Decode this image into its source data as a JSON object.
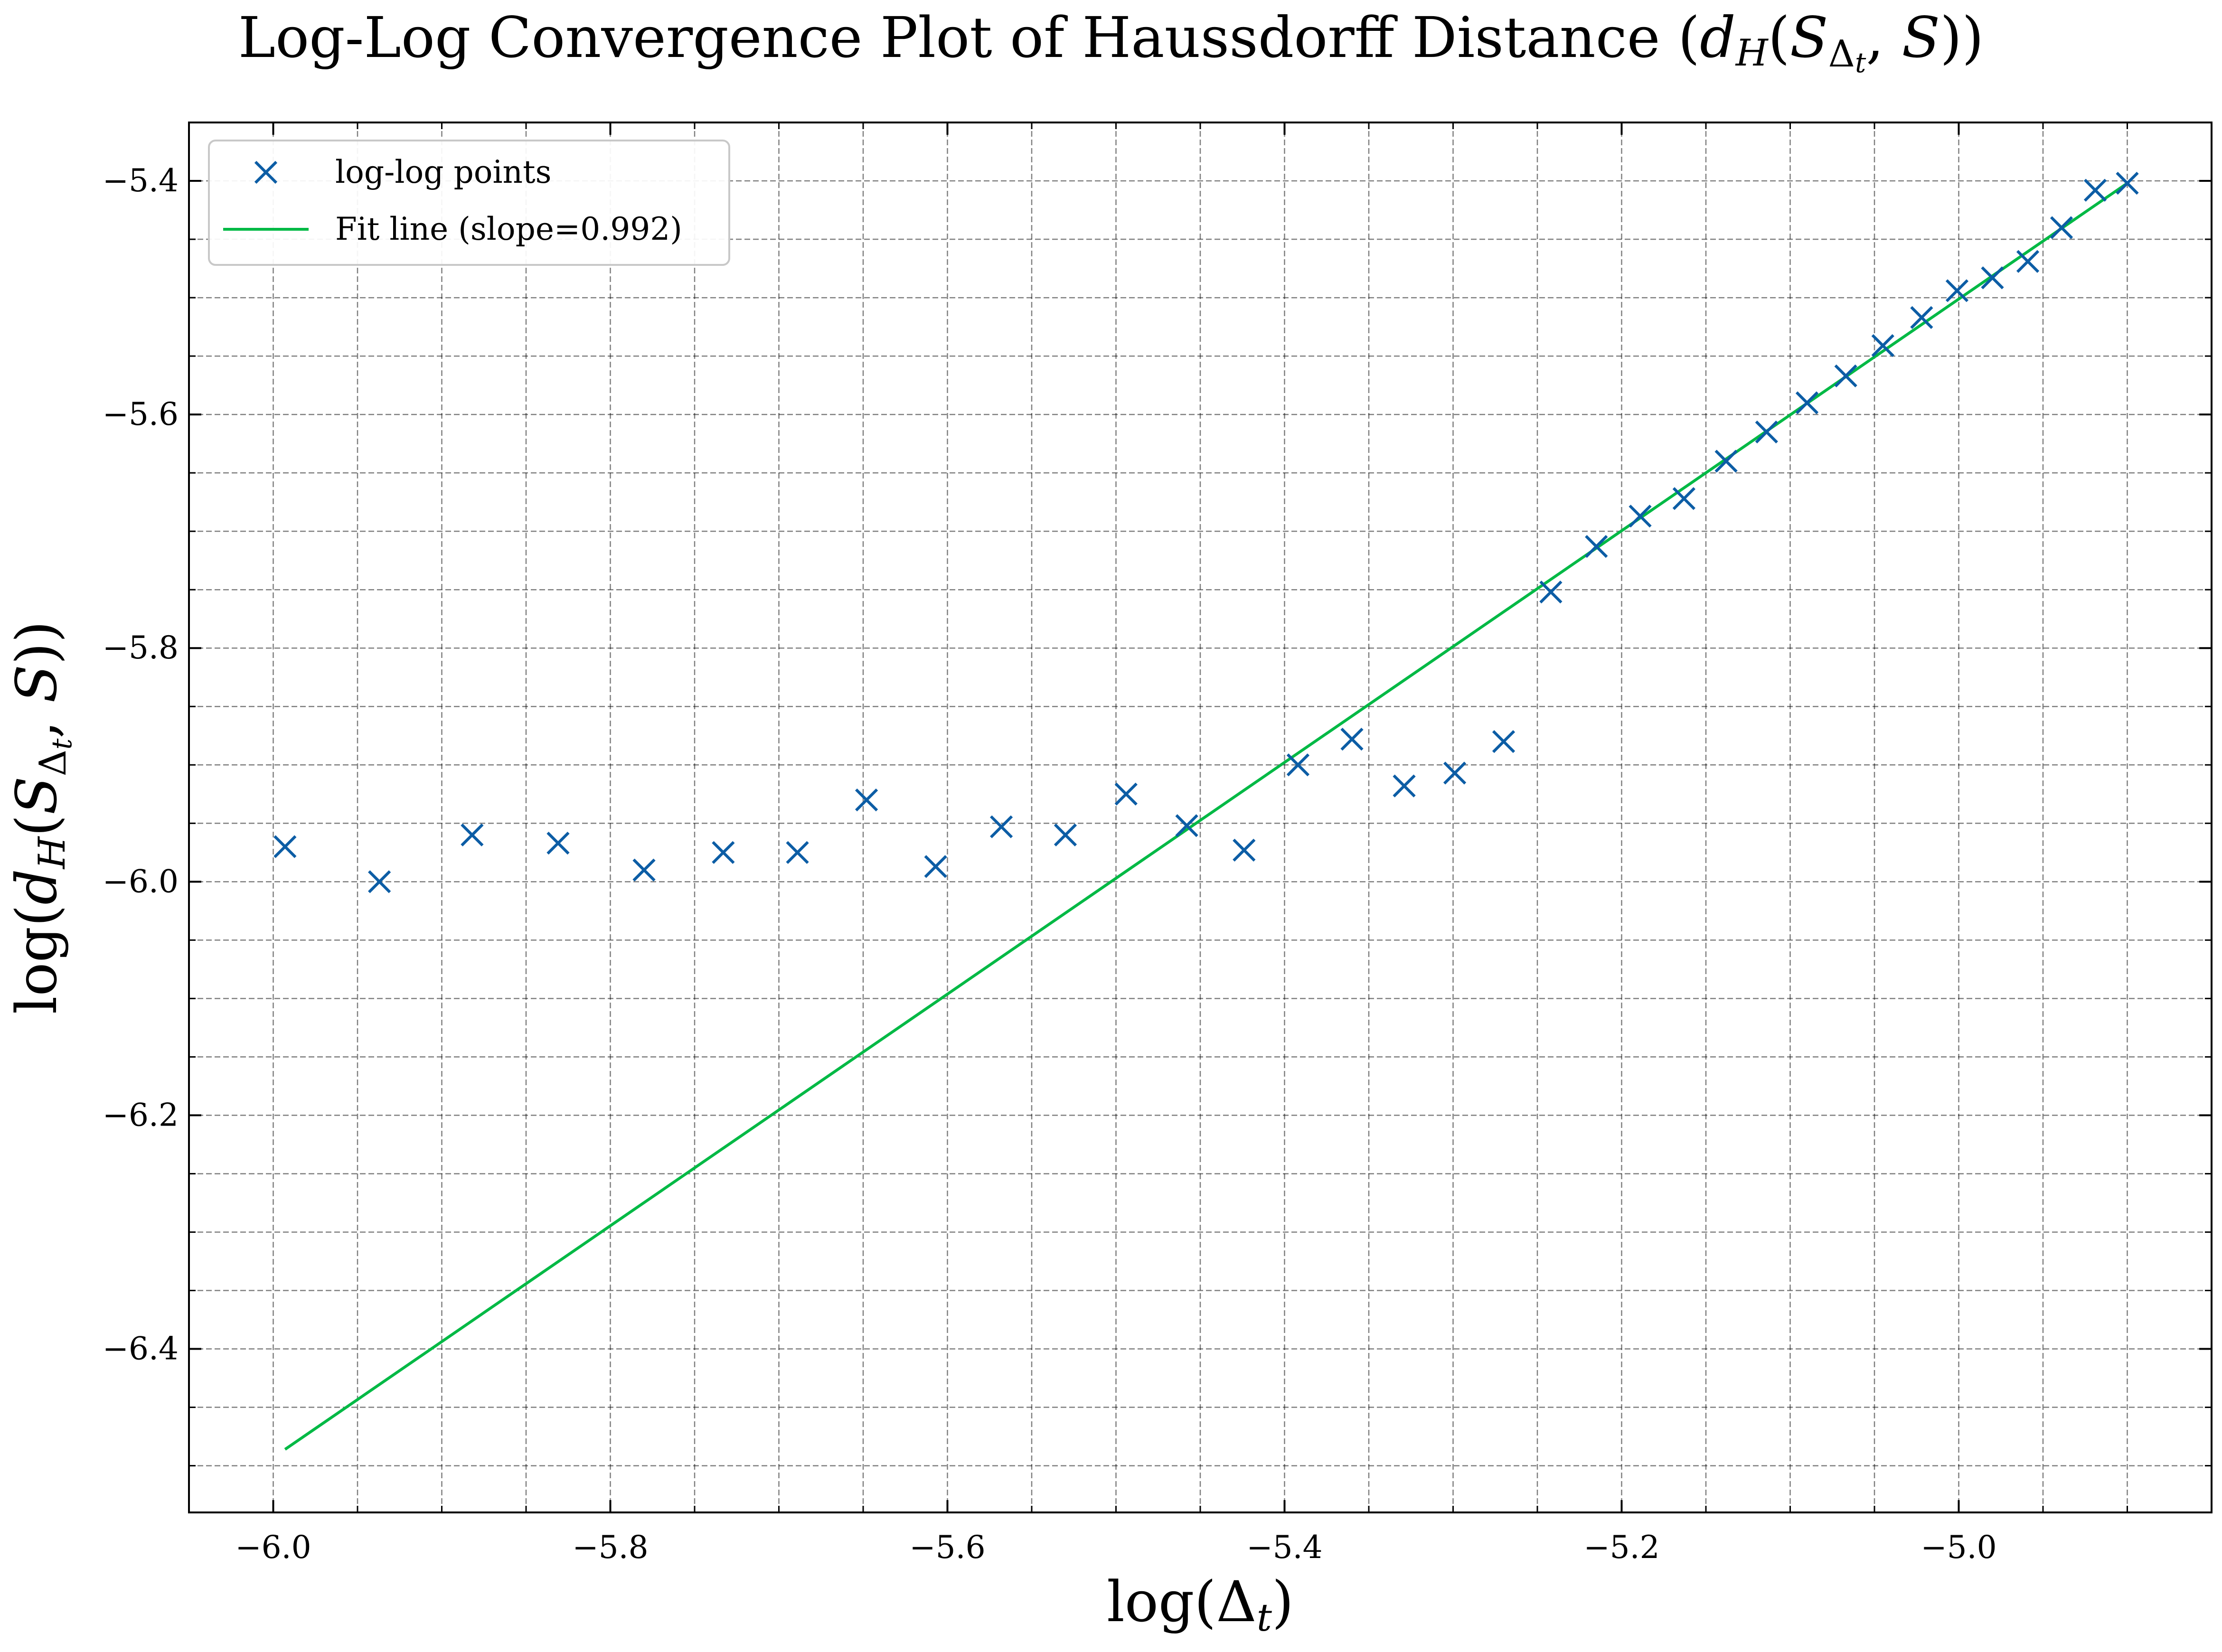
{
  "chart_data": {
    "type": "scatter",
    "title": {
      "prefix": "Log-Log Convergence Plot of Haussdorff Distance (",
      "math_d": "d",
      "math_H": "H",
      "math_open": "(",
      "math_S": "S",
      "math_Delta": "Δ",
      "math_t": "t",
      "math_mid": ", ",
      "math_S2": "S",
      "math_close": "))"
    },
    "xlabel": {
      "prefix": "log(",
      "Delta": "Δ",
      "sub": "t",
      "suffix": ")"
    },
    "ylabel": {
      "prefix": "log(",
      "d": "d",
      "H": "H",
      "open": "(",
      "S": "S",
      "Delta": "Δ",
      "t": "t",
      "mid": ", ",
      "S2": "S",
      "suffix": "))"
    },
    "xlim": [
      -6.05,
      -4.85
    ],
    "ylim": [
      -6.54,
      -5.35
    ],
    "x_ticks": [
      -6.0,
      -5.8,
      -5.6,
      -5.4,
      -5.2,
      -5.0
    ],
    "x_tick_labels": [
      "−6.0",
      "−5.8",
      "−5.6",
      "−5.4",
      "−5.2",
      "−5.0"
    ],
    "x_minor_ticks": [
      -5.95,
      -5.9,
      -5.85,
      -5.75,
      -5.7,
      -5.65,
      -5.55,
      -5.5,
      -5.45,
      -5.35,
      -5.3,
      -5.25,
      -5.15,
      -5.1,
      -5.05,
      -4.95,
      -4.9
    ],
    "y_ticks": [
      -6.4,
      -6.2,
      -6.0,
      -5.8,
      -5.6,
      -5.4
    ],
    "y_tick_labels": [
      "−6.4",
      "−6.2",
      "−6.0",
      "−5.8",
      "−5.6",
      "−5.4"
    ],
    "y_minor_ticks": [
      -6.5,
      -6.45,
      -6.35,
      -6.3,
      -6.25,
      -6.15,
      -6.1,
      -6.05,
      -5.95,
      -5.9,
      -5.85,
      -5.75,
      -5.7,
      -5.65,
      -5.55,
      -5.5,
      -5.45
    ],
    "grid": true,
    "legend_position": "upper-left",
    "series": [
      {
        "name": "log-log points",
        "kind": "scatter",
        "marker": "x",
        "color": "#0C5DA5",
        "x": [
          -5.993,
          -5.937,
          -5.882,
          -5.831,
          -5.78,
          -5.733,
          -5.689,
          -5.648,
          -5.607,
          -5.568,
          -5.53,
          -5.494,
          -5.458,
          -5.424,
          -5.392,
          -5.36,
          -5.329,
          -5.299,
          -5.27,
          -5.242,
          -5.215,
          -5.189,
          -5.163,
          -5.138,
          -5.114,
          -5.09,
          -5.067,
          -5.045,
          -5.022,
          -5.001,
          -4.98,
          -4.959,
          -4.939,
          -4.919,
          -4.9
        ],
        "y": [
          -5.97,
          -6.0,
          -5.96,
          -5.967,
          -5.99,
          -5.975,
          -5.975,
          -5.93,
          -5.987,
          -5.953,
          -5.96,
          -5.925,
          -5.952,
          -5.973,
          -5.9,
          -5.878,
          -5.918,
          -5.907,
          -5.88,
          -5.752,
          -5.713,
          -5.687,
          -5.672,
          -5.64,
          -5.615,
          -5.59,
          -5.567,
          -5.541,
          -5.517,
          -5.494,
          -5.483,
          -5.469,
          -5.44,
          -5.408,
          -5.402
        ]
      },
      {
        "name": "Fit line (slope=0.992)",
        "kind": "line",
        "color": "#00B945",
        "x": [
          -5.993,
          -4.9
        ],
        "y": [
          -6.486,
          -5.402
        ]
      }
    ]
  }
}
